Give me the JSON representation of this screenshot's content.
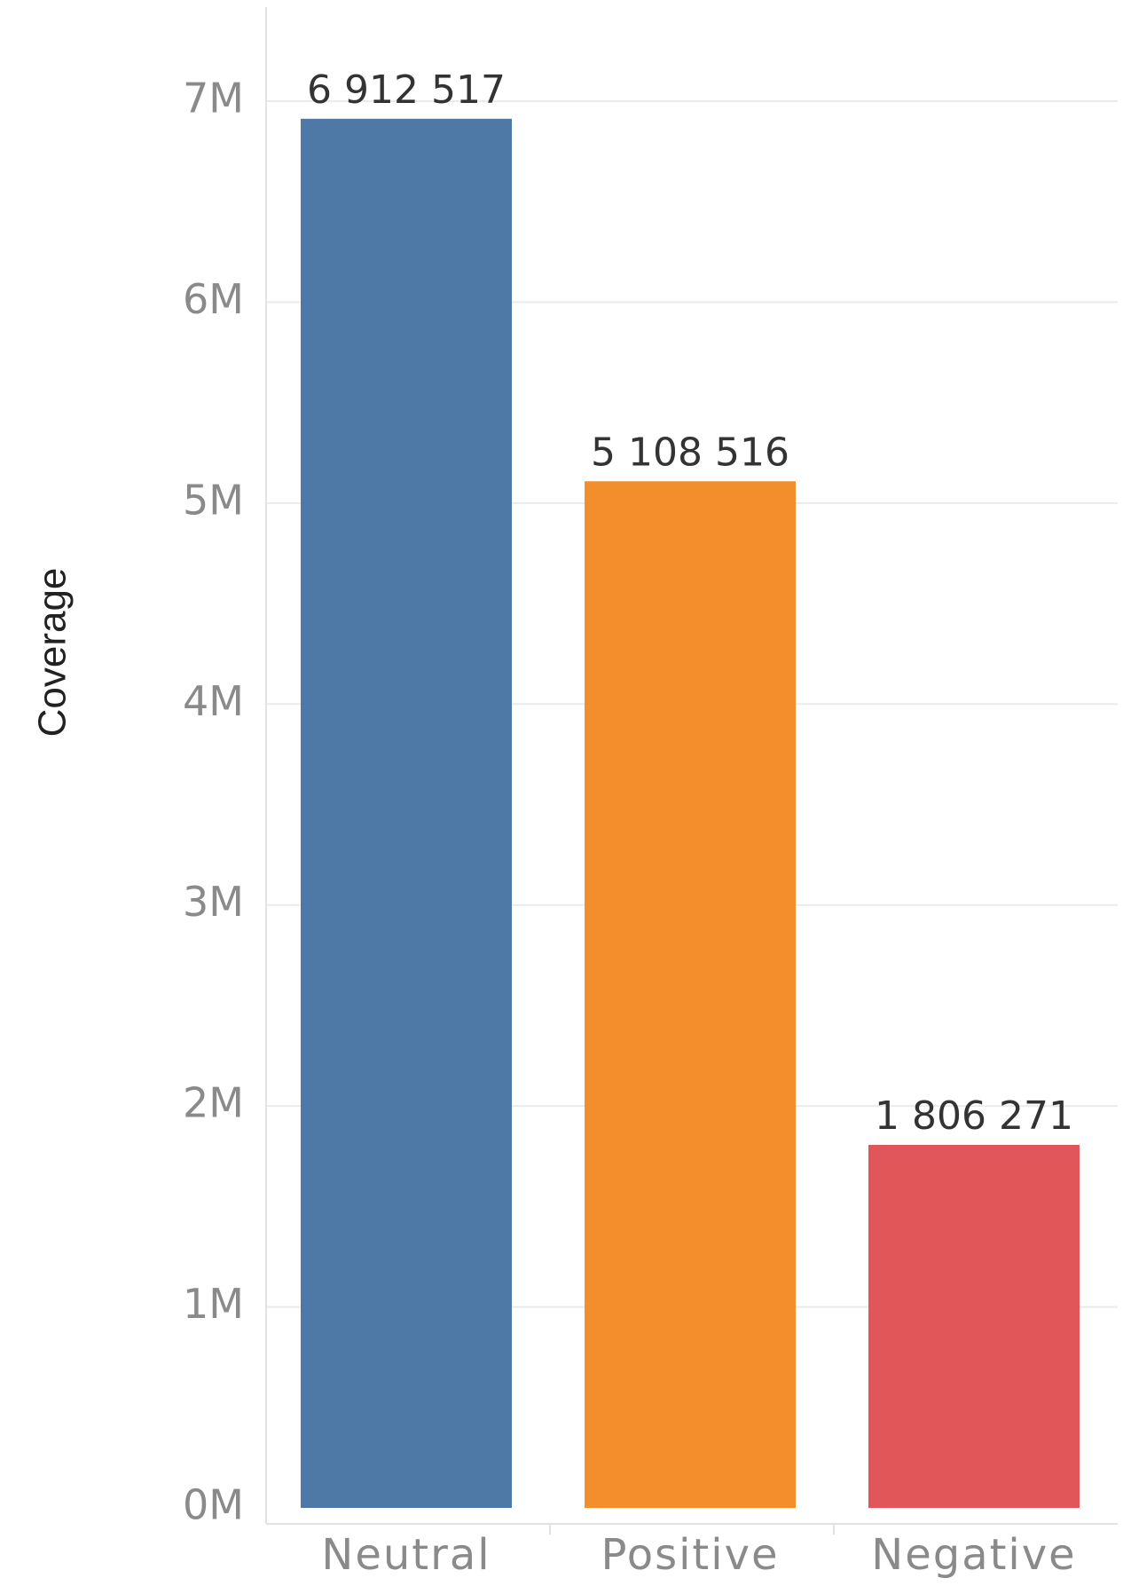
{
  "chart_data": {
    "type": "bar",
    "title": "",
    "xlabel": "",
    "ylabel": "Coverage",
    "ylim": [
      0,
      7500000
    ],
    "yticks": [
      {
        "value": 0,
        "label": "0M"
      },
      {
        "value": 1000000,
        "label": "1M"
      },
      {
        "value": 2000000,
        "label": "2M"
      },
      {
        "value": 3000000,
        "label": "3M"
      },
      {
        "value": 4000000,
        "label": "4M"
      },
      {
        "value": 5000000,
        "label": "5M"
      },
      {
        "value": 6000000,
        "label": "6M"
      },
      {
        "value": 7000000,
        "label": "7M"
      }
    ],
    "categories": [
      "Neutral",
      "Positive",
      "Negative"
    ],
    "values": [
      6912517,
      5108516,
      1806271
    ],
    "value_labels": [
      "6 912 517",
      "5 108 516",
      "1 806 271"
    ],
    "colors": [
      "#4e79a7",
      "#f28e2b",
      "#e15759"
    ],
    "grid": true
  }
}
